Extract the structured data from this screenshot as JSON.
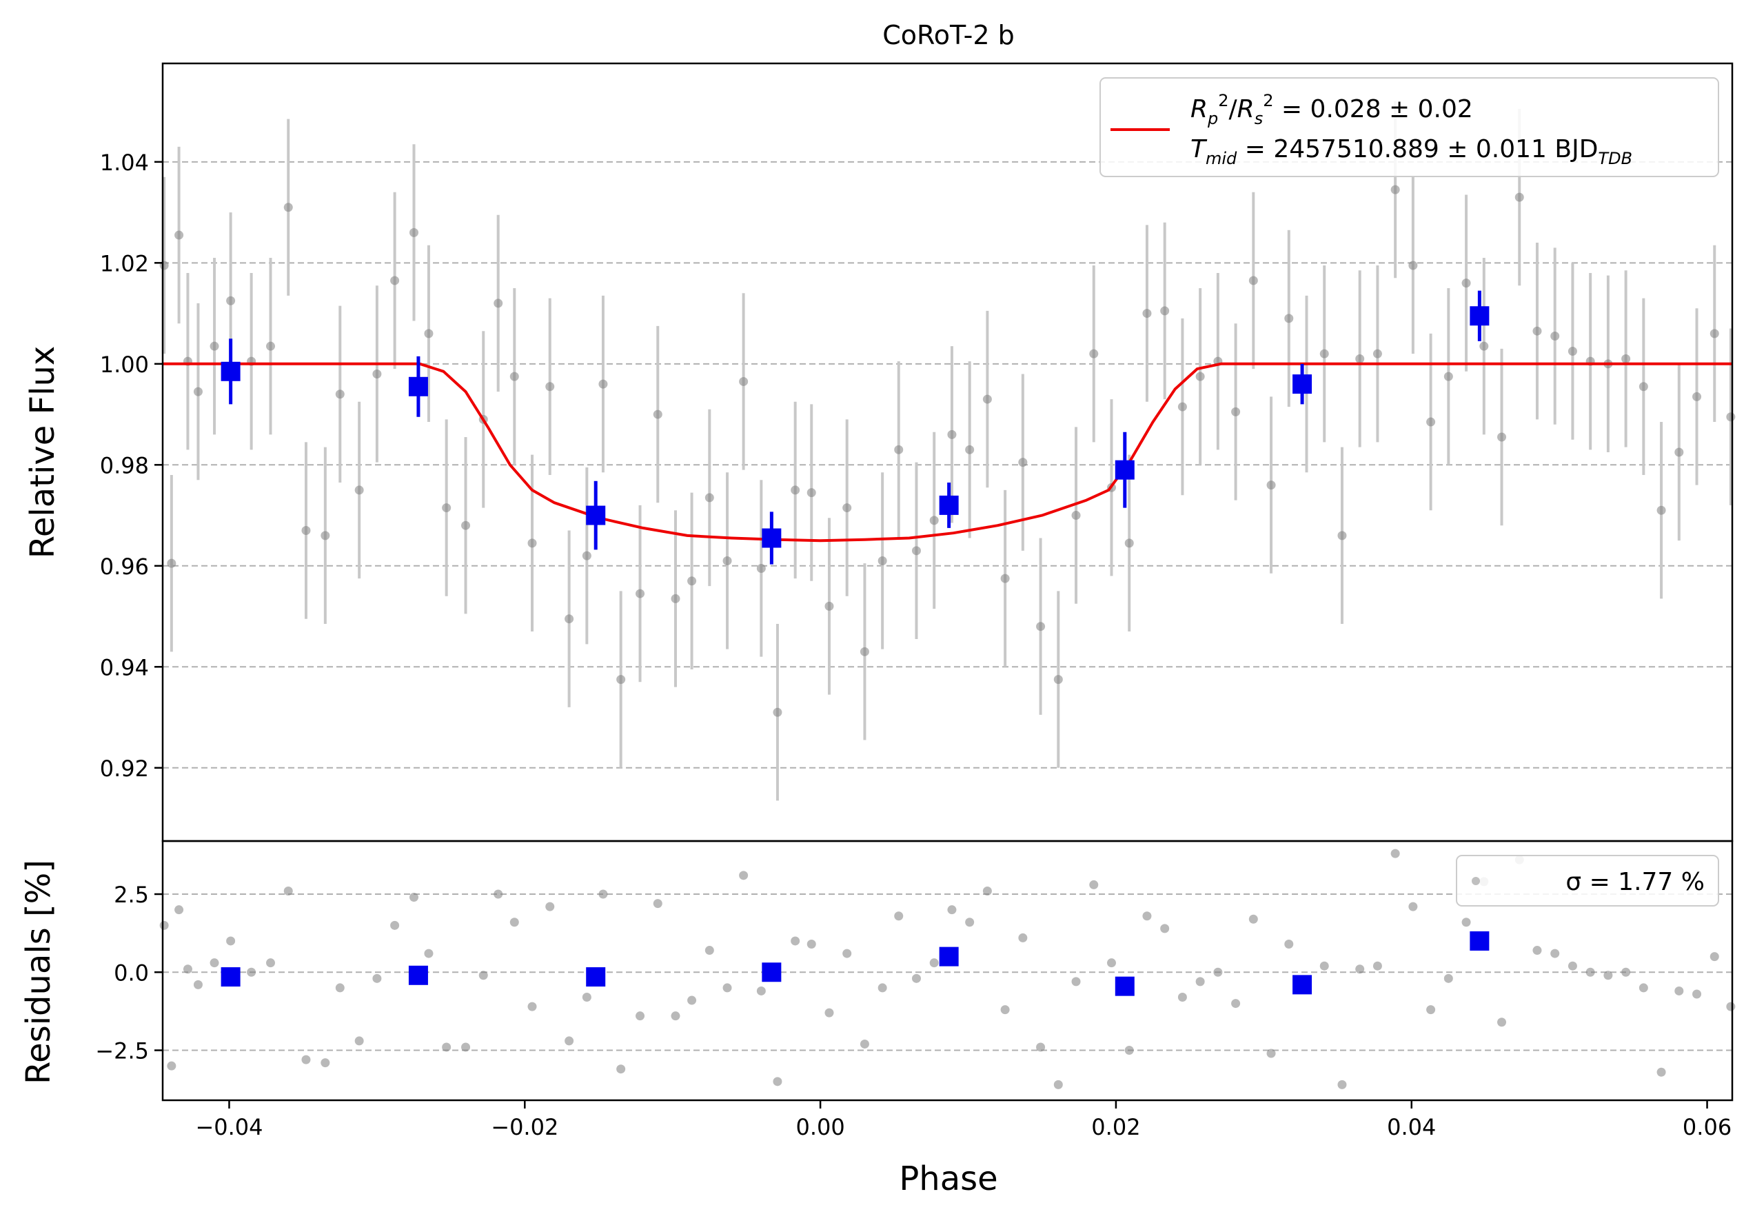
{
  "chart_data": [
    {
      "type": "scatter",
      "title": "CoRoT-2 b",
      "xlabel": "",
      "ylabel": "Relative Flux",
      "xlim": [
        -0.0445,
        0.0617
      ],
      "ylim": [
        0.9055,
        1.0595
      ],
      "yticks": [
        0.92,
        0.94,
        0.96,
        0.98,
        1.0,
        1.02,
        1.04
      ],
      "ytick_labels": [
        "0.92",
        "0.94",
        "0.96",
        "0.98",
        "1.00",
        "1.02",
        "1.04"
      ],
      "grid": "horizontal dashed",
      "legend": {
        "placement": "top-right",
        "line1": "R_p^2/R_s^2 = 0.028 ± 0.02",
        "line2": "T_mid = 2457510.889 ± 0.011 BJD_TDB"
      },
      "colors": {
        "raw": "#808080",
        "errbar": "#c8c8c8",
        "binned": "#0000ee",
        "model": "#ee0000"
      },
      "series": [
        {
          "kind": "raw",
          "x": [
            -0.0444,
            -0.0439,
            -0.0434,
            -0.0428,
            -0.0421,
            -0.041,
            -0.0399,
            -0.0385,
            -0.0372,
            -0.036,
            -0.0348,
            -0.0335,
            -0.0325,
            -0.0312,
            -0.03,
            -0.0288,
            -0.0275,
            -0.0265,
            -0.0253,
            -0.024,
            -0.0228,
            -0.0218,
            -0.0207,
            -0.0195,
            -0.0183,
            -0.017,
            -0.0158,
            -0.0147,
            -0.0135,
            -0.0122,
            -0.011,
            -0.0098,
            -0.0087,
            -0.0075,
            -0.0063,
            -0.0052,
            -0.004,
            -0.0029,
            -0.0017,
            -0.0006,
            0.0006,
            0.0018,
            0.003,
            0.0042,
            0.0053,
            0.0065,
            0.0077,
            0.0089,
            0.0101,
            0.0113,
            0.0125,
            0.0137,
            0.0149,
            0.0161,
            0.0173,
            0.0185,
            0.0197,
            0.0209,
            0.0221,
            0.0233,
            0.0245,
            0.0257,
            0.0269,
            0.0281,
            0.0293,
            0.0305,
            0.0317,
            0.0329,
            0.0341,
            0.0353,
            0.0365,
            0.0377,
            0.0389,
            0.0401,
            0.0413,
            0.0425,
            0.0437,
            0.0449,
            0.0461,
            0.0473,
            0.0485,
            0.0497,
            0.0509,
            0.0521,
            0.0533,
            0.0545,
            0.0557,
            0.0569,
            0.0581,
            0.0593,
            0.0605,
            0.0616
          ],
          "y": [
            1.0195,
            0.9605,
            1.0255,
            1.0005,
            0.9945,
            1.0035,
            1.0125,
            1.0005,
            1.0035,
            1.031,
            0.967,
            0.966,
            0.994,
            0.975,
            0.998,
            1.0165,
            1.026,
            1.006,
            0.9715,
            0.968,
            0.989,
            1.012,
            0.9975,
            0.9645,
            0.9955,
            0.9495,
            0.962,
            0.996,
            0.9375,
            0.9545,
            0.99,
            0.9535,
            0.957,
            0.9735,
            0.961,
            0.9965,
            0.9595,
            0.931,
            0.975,
            0.9745,
            0.952,
            0.9715,
            0.943,
            0.961,
            0.983,
            0.963,
            0.969,
            0.986,
            0.983,
            0.993,
            0.9575,
            0.9805,
            0.948,
            0.9375,
            0.97,
            1.002,
            0.9755,
            0.9645,
            1.01,
            1.0105,
            0.9915,
            0.9975,
            1.0005,
            0.9905,
            1.0165,
            0.976,
            1.009,
            0.996,
            1.002,
            0.966,
            1.001,
            1.002,
            1.0345,
            1.0195,
            0.9885,
            0.9975,
            1.016,
            1.0035,
            0.9855,
            1.033,
            1.0065,
            1.0055,
            1.0025,
            1.0005,
            1.0,
            1.001,
            0.9955,
            0.971,
            0.9825,
            0.9935,
            1.006,
            0.9895
          ],
          "yerr": 0.0175
        },
        {
          "kind": "binned",
          "x": [
            -0.0399,
            -0.0272,
            -0.0152,
            -0.0033,
            0.0087,
            0.0206,
            0.0326,
            0.0446
          ],
          "y": [
            0.9985,
            0.9955,
            0.97,
            0.9655,
            0.972,
            0.979,
            0.996,
            1.0095
          ],
          "yerr": [
            0.0065,
            0.006,
            0.0068,
            0.0052,
            0.0045,
            0.0075,
            0.004,
            0.005
          ]
        },
        {
          "kind": "model",
          "x": [
            -0.0445,
            -0.0271,
            -0.0255,
            -0.024,
            -0.0225,
            -0.021,
            -0.0195,
            -0.018,
            -0.015,
            -0.012,
            -0.009,
            -0.006,
            -0.003,
            0.0,
            0.003,
            0.006,
            0.009,
            0.012,
            0.015,
            0.018,
            0.0195,
            0.021,
            0.0225,
            0.024,
            0.0255,
            0.0271,
            0.0617
          ],
          "y": [
            1.0,
            1.0,
            0.9985,
            0.9945,
            0.9875,
            0.98,
            0.975,
            0.9725,
            0.9695,
            0.9675,
            0.966,
            0.9655,
            0.9652,
            0.965,
            0.9652,
            0.9655,
            0.9665,
            0.968,
            0.97,
            0.973,
            0.975,
            0.981,
            0.9885,
            0.995,
            0.999,
            1.0,
            1.0
          ]
        }
      ]
    },
    {
      "type": "scatter",
      "title": "",
      "xlabel": "Phase",
      "ylabel": "Residuals [%]",
      "xlim": [
        -0.0445,
        0.0617
      ],
      "ylim": [
        -4.1,
        4.2
      ],
      "xticks": [
        -0.04,
        -0.02,
        0.0,
        0.02,
        0.04,
        0.06
      ],
      "xtick_labels": [
        "−0.04",
        "−0.02",
        "0.00",
        "0.02",
        "0.04",
        "0.06"
      ],
      "yticks": [
        -2.5,
        0.0,
        2.5
      ],
      "ytick_labels": [
        "−2.5",
        "0.0",
        "2.5"
      ],
      "grid": "horizontal dashed",
      "legend": {
        "placement": "top-right",
        "label": "σ = 1.77 %"
      },
      "series": [
        {
          "kind": "raw",
          "x": [
            -0.0444,
            -0.0439,
            -0.0434,
            -0.0428,
            -0.0421,
            -0.041,
            -0.0399,
            -0.0385,
            -0.0372,
            -0.036,
            -0.0348,
            -0.0335,
            -0.0325,
            -0.0312,
            -0.03,
            -0.0288,
            -0.0275,
            -0.0265,
            -0.0253,
            -0.024,
            -0.0228,
            -0.0218,
            -0.0207,
            -0.0195,
            -0.0183,
            -0.017,
            -0.0158,
            -0.0147,
            -0.0135,
            -0.0122,
            -0.011,
            -0.0098,
            -0.0087,
            -0.0075,
            -0.0063,
            -0.0052,
            -0.004,
            -0.0029,
            -0.0017,
            -0.0006,
            0.0006,
            0.0018,
            0.003,
            0.0042,
            0.0053,
            0.0065,
            0.0077,
            0.0089,
            0.0101,
            0.0113,
            0.0125,
            0.0137,
            0.0149,
            0.0161,
            0.0173,
            0.0185,
            0.0197,
            0.0209,
            0.0221,
            0.0233,
            0.0245,
            0.0257,
            0.0269,
            0.0281,
            0.0293,
            0.0305,
            0.0317,
            0.0329,
            0.0341,
            0.0353,
            0.0365,
            0.0377,
            0.0389,
            0.0401,
            0.0413,
            0.0425,
            0.0437,
            0.0449,
            0.0461,
            0.0473,
            0.0485,
            0.0497,
            0.0509,
            0.0521,
            0.0533,
            0.0545,
            0.0557,
            0.0569,
            0.0581,
            0.0593,
            0.0605,
            0.0616
          ],
          "y": [
            1.5,
            -3.0,
            2.0,
            0.1,
            -0.4,
            0.3,
            1.0,
            0.0,
            0.3,
            2.6,
            -2.8,
            -2.9,
            -0.5,
            -2.2,
            -0.2,
            1.5,
            2.4,
            0.6,
            -2.4,
            -2.4,
            -0.1,
            2.5,
            1.6,
            -1.1,
            2.1,
            -2.2,
            -0.8,
            2.5,
            -3.1,
            -1.4,
            2.2,
            -1.4,
            -0.9,
            0.7,
            -0.5,
            3.1,
            -0.6,
            -3.5,
            1.0,
            0.9,
            -1.3,
            0.6,
            -2.3,
            -0.5,
            1.8,
            -0.2,
            0.3,
            2.0,
            1.6,
            2.6,
            -1.2,
            1.1,
            -2.4,
            -3.6,
            -0.3,
            2.8,
            0.3,
            -2.5,
            1.8,
            1.4,
            -0.8,
            -0.3,
            0.0,
            -1.0,
            1.7,
            -2.6,
            0.9,
            -0.4,
            0.2,
            -3.6,
            0.1,
            0.2,
            3.8,
            2.1,
            -1.2,
            -0.2,
            1.6,
            2.9,
            -1.6,
            3.6,
            0.7,
            0.6,
            0.2,
            0.0,
            -0.1,
            0.0,
            -0.5,
            -3.2,
            -0.6,
            -0.7,
            0.5,
            -1.1
          ]
        },
        {
          "kind": "binned",
          "x": [
            -0.0399,
            -0.0272,
            -0.0152,
            -0.0033,
            0.0087,
            0.0206,
            0.0326,
            0.0446
          ],
          "y": [
            -0.15,
            -0.1,
            -0.15,
            0.0,
            0.5,
            -0.45,
            -0.4,
            1.0
          ]
        }
      ]
    }
  ]
}
